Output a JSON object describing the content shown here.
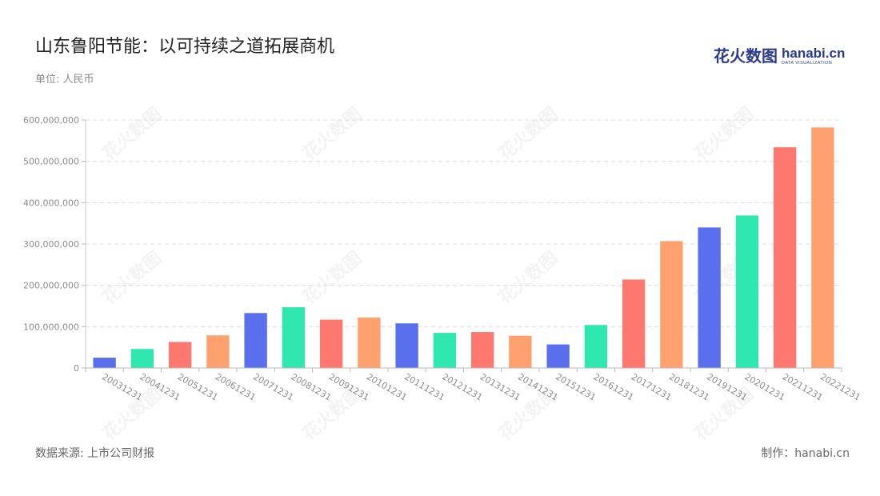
{
  "header": {
    "title": "山东鲁阳节能：以可持续之道拓展商机",
    "unit": "单位: 人民币"
  },
  "logo": {
    "zh": "花火数图",
    "en": "hanabi.cn",
    "sub": "DATA VISUALIZATION"
  },
  "footer": {
    "source": "数据来源: 上市公司财报",
    "maker": "制作：hanabi.cn"
  },
  "palette": [
    "#5a6fee",
    "#2ee8b0",
    "#ff7870",
    "#ffa16e"
  ],
  "chart_data": {
    "type": "bar",
    "categories": [
      "20031231",
      "20041231",
      "20051231",
      "20061231",
      "20071231",
      "20081231",
      "20091231",
      "20101231",
      "20111231",
      "20121231",
      "20131231",
      "20141231",
      "20151231",
      "20161231",
      "20171231",
      "20181231",
      "20191231",
      "20201231",
      "20211231",
      "20221231"
    ],
    "values": [
      25000000,
      46000000,
      63000000,
      79000000,
      133000000,
      147000000,
      117000000,
      122000000,
      108000000,
      85000000,
      87000000,
      78000000,
      57000000,
      104000000,
      214000000,
      307000000,
      340000000,
      369000000,
      534000000,
      582000000
    ],
    "ylim": [
      0,
      600000000
    ],
    "yticks": [
      0,
      100000000,
      200000000,
      300000000,
      400000000,
      500000000,
      600000000
    ],
    "ytick_labels": [
      "0",
      "100,000,000",
      "200,000,000",
      "300,000,000",
      "400,000,000",
      "500,000,000",
      "600,000,000"
    ],
    "bar_colors": [
      "#5a6fee",
      "#2ee8b0",
      "#ff7870",
      "#ffa16e",
      "#5a6fee",
      "#2ee8b0",
      "#ff7870",
      "#ffa16e",
      "#5a6fee",
      "#2ee8b0",
      "#ff7870",
      "#ffa16e",
      "#5a6fee",
      "#2ee8b0",
      "#ff7870",
      "#ffa16e",
      "#5a6fee",
      "#2ee8b0",
      "#ff7870",
      "#ffa16e"
    ],
    "grid": true
  }
}
